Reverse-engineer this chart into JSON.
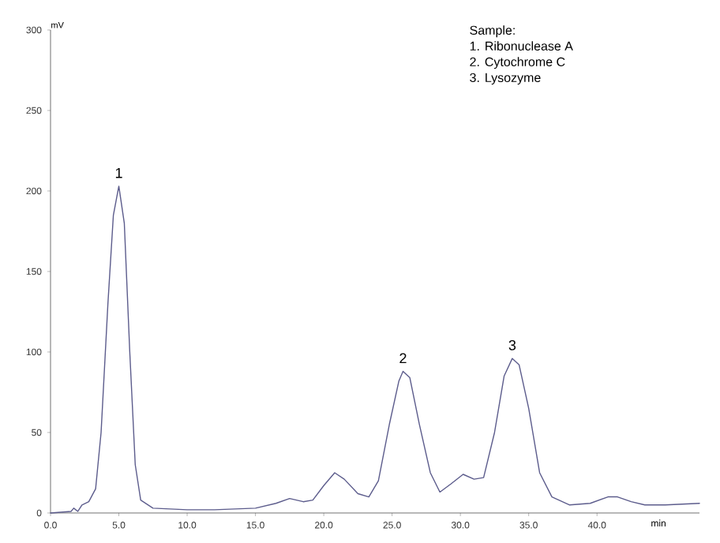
{
  "chart_data": {
    "type": "line",
    "xlabel": "min",
    "ylabel": "mV",
    "annotations": [
      {
        "text": "1",
        "x": 5.0,
        "y": 203
      },
      {
        "text": "2",
        "x": 25.8,
        "y": 88
      },
      {
        "text": "3",
        "x": 33.8,
        "y": 96
      },
      "Sample:",
      "1. Ribonuclease A",
      "2. Cytochrome C",
      "3. Lysozyme"
    ],
    "xlim": [
      0,
      47.5
    ],
    "ylim": [
      0,
      300
    ],
    "xticks": [
      {
        "value": 0,
        "label": "0.0"
      },
      {
        "value": 5,
        "label": "5.0"
      },
      {
        "value": 10,
        "label": "10.0"
      },
      {
        "value": 15,
        "label": "15.0"
      },
      {
        "value": 20,
        "label": "20.0"
      },
      {
        "value": 25,
        "label": "25.0"
      },
      {
        "value": 30,
        "label": "30.0"
      },
      {
        "value": 35,
        "label": "35.0"
      },
      {
        "value": 40,
        "label": "40.0"
      }
    ],
    "yticks": [
      0,
      50,
      100,
      150,
      200,
      250,
      300
    ],
    "grid": false,
    "marker": "none",
    "line_style": "solid",
    "x": [
      0,
      1.5,
      1.7,
      2.0,
      2.3,
      2.8,
      3.3,
      3.7,
      4.2,
      4.6,
      5.0,
      5.4,
      5.8,
      6.2,
      6.6,
      7.5,
      10,
      12,
      15,
      16.5,
      17.5,
      18.5,
      19.2,
      20.0,
      20.8,
      21.5,
      22.5,
      23.3,
      24.0,
      24.8,
      25.5,
      25.8,
      26.3,
      27.0,
      27.8,
      28.5,
      29.3,
      30.2,
      31.0,
      31.7,
      32.5,
      33.2,
      33.8,
      34.3,
      35.0,
      35.8,
      36.7,
      38,
      39.5,
      40.8,
      41.5,
      42.5,
      43.5,
      45,
      47.5
    ],
    "series": [
      {
        "color": "#5c5c8c",
        "values": [
          0,
          1,
          3,
          1,
          5,
          7,
          15,
          50,
          130,
          185,
          203,
          180,
          100,
          30,
          8,
          3,
          2,
          2,
          3,
          6,
          9,
          7,
          8,
          17,
          25,
          21,
          12,
          10,
          20,
          55,
          82,
          88,
          84,
          55,
          25,
          13,
          18,
          24,
          21,
          22,
          50,
          85,
          96,
          92,
          65,
          25,
          10,
          5,
          6,
          10,
          10,
          7,
          5,
          5,
          6
        ]
      }
    ]
  }
}
